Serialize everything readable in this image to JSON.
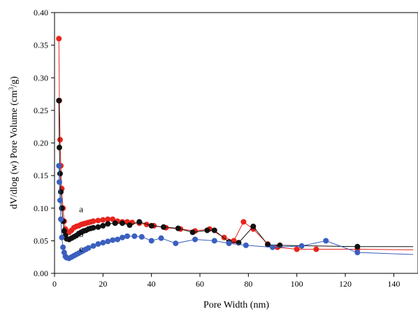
{
  "chart_data": {
    "type": "scatter",
    "xlabel": "Pore Width (nm)",
    "ylabel_html": "dV/dlog (w) Pore Volume (cm<tspan baseline-shift='super' font-size='9'>3</tspan>/g)",
    "ylabel": "dV/dlog (w) Pore Volume (cm3/g)",
    "xlim": [
      0,
      150
    ],
    "ylim": [
      0,
      0.4
    ],
    "xticks": [
      0,
      20,
      40,
      60,
      80,
      100,
      120,
      140
    ],
    "yticks": [
      0.0,
      0.05,
      0.1,
      0.15,
      0.2,
      0.25,
      0.3,
      0.35,
      0.4
    ],
    "ytick_labels": [
      "0.00",
      "0.05",
      "0.10",
      "0.15",
      "0.20",
      "0.25",
      "0.30",
      "0.35",
      "0.40"
    ],
    "xtick_labels": [
      "0",
      "20",
      "40",
      "60",
      "80",
      "100",
      "120",
      "140"
    ],
    "grid": false,
    "series": [
      {
        "name": "a",
        "color": "#e8241c",
        "label_at": [
          11,
          0.094
        ],
        "line_end": [
          148,
          0.036
        ],
        "points": [
          [
            1.8,
            0.36
          ],
          [
            2.0,
            0.265
          ],
          [
            2.3,
            0.205
          ],
          [
            2.6,
            0.165
          ],
          [
            3.0,
            0.13
          ],
          [
            3.5,
            0.1
          ],
          [
            4.0,
            0.08
          ],
          [
            4.5,
            0.068
          ],
          [
            5.0,
            0.062
          ],
          [
            6.0,
            0.063
          ],
          [
            7.0,
            0.066
          ],
          [
            8.0,
            0.07
          ],
          [
            9.0,
            0.072
          ],
          [
            10.0,
            0.073
          ],
          [
            11.0,
            0.075
          ],
          [
            12.0,
            0.076
          ],
          [
            13.0,
            0.077
          ],
          [
            14.0,
            0.078
          ],
          [
            15.0,
            0.079
          ],
          [
            16.0,
            0.08
          ],
          [
            18.0,
            0.081
          ],
          [
            20.0,
            0.082
          ],
          [
            22.0,
            0.083
          ],
          [
            24.0,
            0.083
          ],
          [
            26.0,
            0.08
          ],
          [
            28.0,
            0.079
          ],
          [
            30.0,
            0.079
          ],
          [
            32.0,
            0.078
          ],
          [
            35.0,
            0.077
          ],
          [
            38.0,
            0.075
          ],
          [
            41.0,
            0.073
          ],
          [
            46.0,
            0.07
          ],
          [
            52.0,
            0.068
          ],
          [
            58.0,
            0.065
          ],
          [
            64.0,
            0.068
          ],
          [
            70.0,
            0.055
          ],
          [
            74.0,
            0.05
          ],
          [
            78.0,
            0.079
          ],
          [
            82.0,
            0.068
          ],
          [
            88.0,
            0.045
          ],
          [
            92.0,
            0.04
          ],
          [
            100.0,
            0.037
          ],
          [
            108.0,
            0.037
          ],
          [
            125.0,
            0.037
          ]
        ]
      },
      {
        "name": "b",
        "color": "#111111",
        "label_at": [
          11,
          0.056
        ],
        "line_end": [
          148,
          0.041
        ],
        "points": [
          [
            1.8,
            0.265
          ],
          [
            2.0,
            0.193
          ],
          [
            2.3,
            0.153
          ],
          [
            2.6,
            0.125
          ],
          [
            3.0,
            0.1
          ],
          [
            3.5,
            0.08
          ],
          [
            4.0,
            0.065
          ],
          [
            4.5,
            0.058
          ],
          [
            5.0,
            0.053
          ],
          [
            6.0,
            0.052
          ],
          [
            7.0,
            0.054
          ],
          [
            8.0,
            0.056
          ],
          [
            9.0,
            0.058
          ],
          [
            10.0,
            0.061
          ],
          [
            11.0,
            0.063
          ],
          [
            12.0,
            0.065
          ],
          [
            13.0,
            0.066
          ],
          [
            14.0,
            0.068
          ],
          [
            15.0,
            0.069
          ],
          [
            16.0,
            0.07
          ],
          [
            18.0,
            0.071
          ],
          [
            20.0,
            0.073
          ],
          [
            22.0,
            0.076
          ],
          [
            25.0,
            0.077
          ],
          [
            28.0,
            0.077
          ],
          [
            31.0,
            0.074
          ],
          [
            35.0,
            0.079
          ],
          [
            40.0,
            0.073
          ],
          [
            45.0,
            0.071
          ],
          [
            51.0,
            0.069
          ],
          [
            57.0,
            0.063
          ],
          [
            63.0,
            0.066
          ],
          [
            66.0,
            0.066
          ],
          [
            72.0,
            0.048
          ],
          [
            76.0,
            0.047
          ],
          [
            82.0,
            0.072
          ],
          [
            88.0,
            0.044
          ],
          [
            93.0,
            0.043
          ],
          [
            125.0,
            0.041
          ]
        ]
      },
      {
        "name": "c",
        "color": "#3a5fbf",
        "label_at": [
          11,
          0.033
        ],
        "line_end": [
          148,
          0.029
        ],
        "points": [
          [
            1.8,
            0.165
          ],
          [
            2.0,
            0.14
          ],
          [
            2.3,
            0.112
          ],
          [
            2.6,
            0.083
          ],
          [
            3.0,
            0.055
          ],
          [
            3.5,
            0.04
          ],
          [
            4.0,
            0.032
          ],
          [
            4.5,
            0.026
          ],
          [
            5.0,
            0.024
          ],
          [
            6.0,
            0.023
          ],
          [
            7.0,
            0.025
          ],
          [
            8.0,
            0.027
          ],
          [
            9.0,
            0.029
          ],
          [
            10.0,
            0.031
          ],
          [
            11.0,
            0.033
          ],
          [
            12.0,
            0.035
          ],
          [
            13.0,
            0.037
          ],
          [
            14.0,
            0.039
          ],
          [
            16.0,
            0.042
          ],
          [
            18.0,
            0.045
          ],
          [
            20.0,
            0.047
          ],
          [
            22.0,
            0.049
          ],
          [
            24.0,
            0.051
          ],
          [
            26.0,
            0.052
          ],
          [
            28.0,
            0.055
          ],
          [
            30.0,
            0.057
          ],
          [
            33.0,
            0.057
          ],
          [
            36.0,
            0.056
          ],
          [
            40.0,
            0.05
          ],
          [
            44.0,
            0.054
          ],
          [
            50.0,
            0.046
          ],
          [
            58.0,
            0.052
          ],
          [
            66.0,
            0.05
          ],
          [
            72.0,
            0.046
          ],
          [
            79.0,
            0.043
          ],
          [
            90.0,
            0.04
          ],
          [
            102.0,
            0.042
          ],
          [
            112.0,
            0.05
          ],
          [
            125.0,
            0.032
          ]
        ]
      }
    ]
  }
}
